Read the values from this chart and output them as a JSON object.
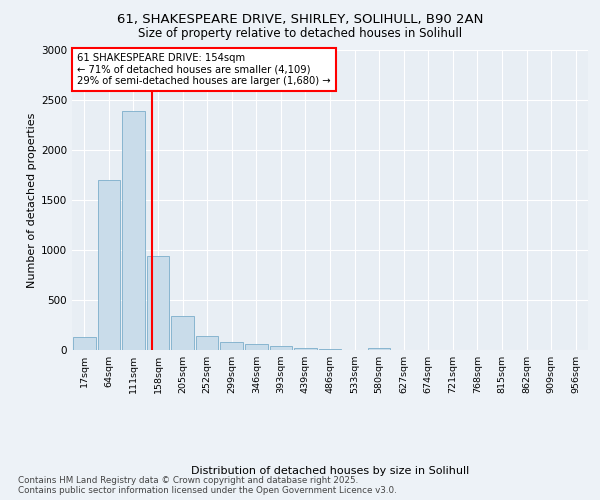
{
  "title_line1": "61, SHAKESPEARE DRIVE, SHIRLEY, SOLIHULL, B90 2AN",
  "title_line2": "Size of property relative to detached houses in Solihull",
  "xlabel": "Distribution of detached houses by size in Solihull",
  "ylabel": "Number of detached properties",
  "bar_labels": [
    "17sqm",
    "64sqm",
    "111sqm",
    "158sqm",
    "205sqm",
    "252sqm",
    "299sqm",
    "346sqm",
    "393sqm",
    "439sqm",
    "486sqm",
    "533sqm",
    "580sqm",
    "627sqm",
    "674sqm",
    "721sqm",
    "768sqm",
    "815sqm",
    "862sqm",
    "909sqm",
    "956sqm"
  ],
  "bar_values": [
    130,
    1700,
    2390,
    940,
    340,
    140,
    80,
    60,
    40,
    20,
    10,
    0,
    25,
    0,
    0,
    0,
    0,
    0,
    0,
    0,
    0
  ],
  "bar_color": "#c9dcea",
  "bar_edgecolor": "#7baecb",
  "vline_color": "red",
  "annotation_text": "61 SHAKESPEARE DRIVE: 154sqm\n← 71% of detached houses are smaller (4,109)\n29% of semi-detached houses are larger (1,680) →",
  "annotation_box_edgecolor": "red",
  "annotation_box_facecolor": "white",
  "ylim": [
    0,
    3000
  ],
  "yticks": [
    0,
    500,
    1000,
    1500,
    2000,
    2500,
    3000
  ],
  "footer_text": "Contains HM Land Registry data © Crown copyright and database right 2025.\nContains public sector information licensed under the Open Government Licence v3.0.",
  "bg_color": "#edf2f7",
  "plot_bg_color": "#e8eef4"
}
